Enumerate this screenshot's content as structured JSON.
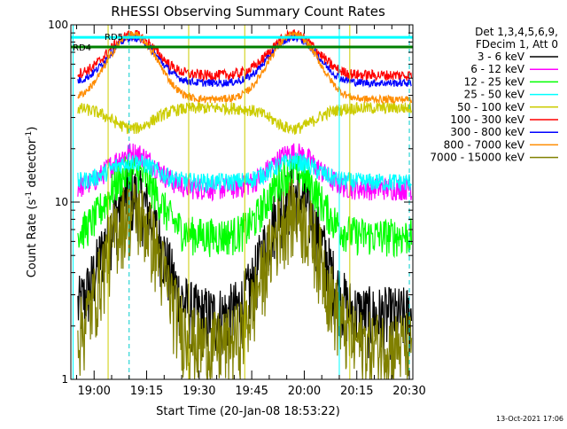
{
  "chart_data": {
    "type": "line",
    "title": "RHESSI Observing Summary Count Rates",
    "xlabel": "Start Time (20-Jan-08 18:53:22)",
    "ylabel_main": "Count Rate (s",
    "ylabel_sup": "-1",
    "ylabel_mid": " detector",
    "ylabel_sup2": "-1",
    "ylabel_end": ")",
    "xscale": "time",
    "xlim": [
      "18:53:22",
      "20:31:00"
    ],
    "yscale": "log",
    "ylim": [
      1,
      100
    ],
    "x_ticks": [
      "19:00",
      "19:15",
      "19:30",
      "19:45",
      "20:00",
      "20:15",
      "20:30"
    ],
    "y_ticks": [
      "1",
      "10",
      "100"
    ],
    "legend_header": [
      "Det 1,3,4,5,6,9,",
      "FDecim 1, Att 0"
    ],
    "legend_position": "right",
    "series": [
      {
        "name": "3 - 6 keV",
        "color": "#000000"
      },
      {
        "name": "6 - 12 keV",
        "color": "#ff00ff"
      },
      {
        "name": "12 - 25 keV",
        "color": "#00ff00"
      },
      {
        "name": "25 - 50 keV",
        "color": "#00ffff"
      },
      {
        "name": "50 - 100 keV",
        "color": "#cccc00"
      },
      {
        "name": "100 - 300 keV",
        "color": "#ff0000"
      },
      {
        "name": "300 - 800 keV",
        "color": "#0000ff"
      },
      {
        "name": "800 - 7000 keV",
        "color": "#ff8c00"
      },
      {
        "name": "7000 - 15000 keV",
        "color": "#808000"
      }
    ],
    "flag_bars": [
      {
        "label": "RD4",
        "color": "#008000",
        "value": 75
      },
      {
        "label": "RD5",
        "color": "#00ffff",
        "value": 85
      }
    ],
    "footer_stamp": "13-Oct-2021 17:06"
  }
}
